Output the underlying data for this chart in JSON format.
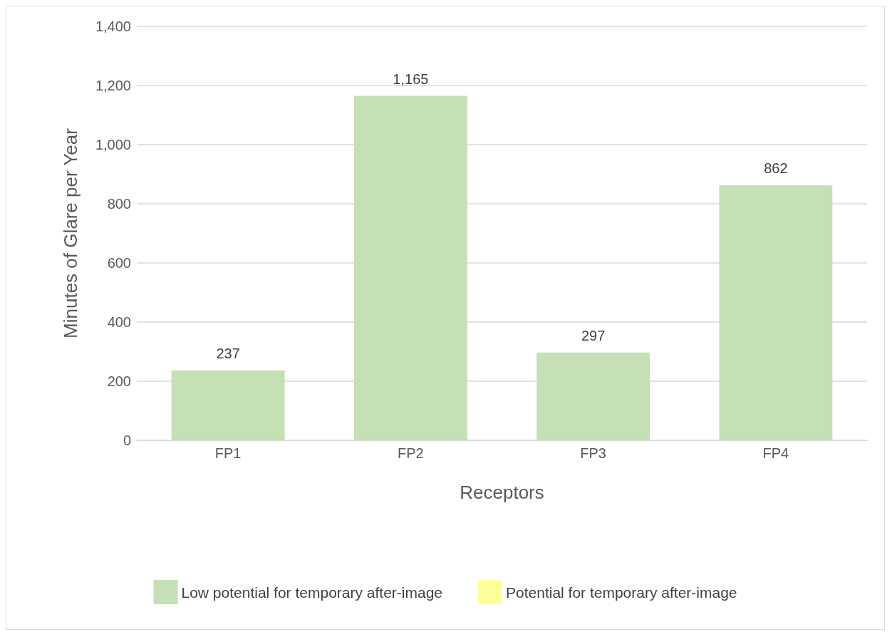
{
  "chart_data": {
    "type": "bar",
    "xlabel": "Receptors",
    "ylabel": "Minutes of Glare per Year",
    "categories": [
      "FP1",
      "FP2",
      "FP3",
      "FP4"
    ],
    "series": [
      {
        "name": "Low potential for temporary after-image",
        "color": "#c5e0b4",
        "values": [
          237,
          1165,
          297,
          862
        ],
        "value_labels": [
          "237",
          "1,165",
          "297",
          "862"
        ]
      },
      {
        "name": "Potential for temporary after-image",
        "color": "#ffff99",
        "values": [
          0,
          0,
          0,
          0
        ]
      }
    ],
    "stacked": true,
    "ylim": [
      0,
      1400
    ],
    "yticks": [
      0,
      200,
      400,
      600,
      800,
      {
        "value": 1000,
        "label": "1,000"
      },
      {
        "value": 1200,
        "label": "1,200"
      },
      {
        "value": 1400,
        "label": "1,400"
      }
    ],
    "grid": "y",
    "legend": "bottom"
  }
}
